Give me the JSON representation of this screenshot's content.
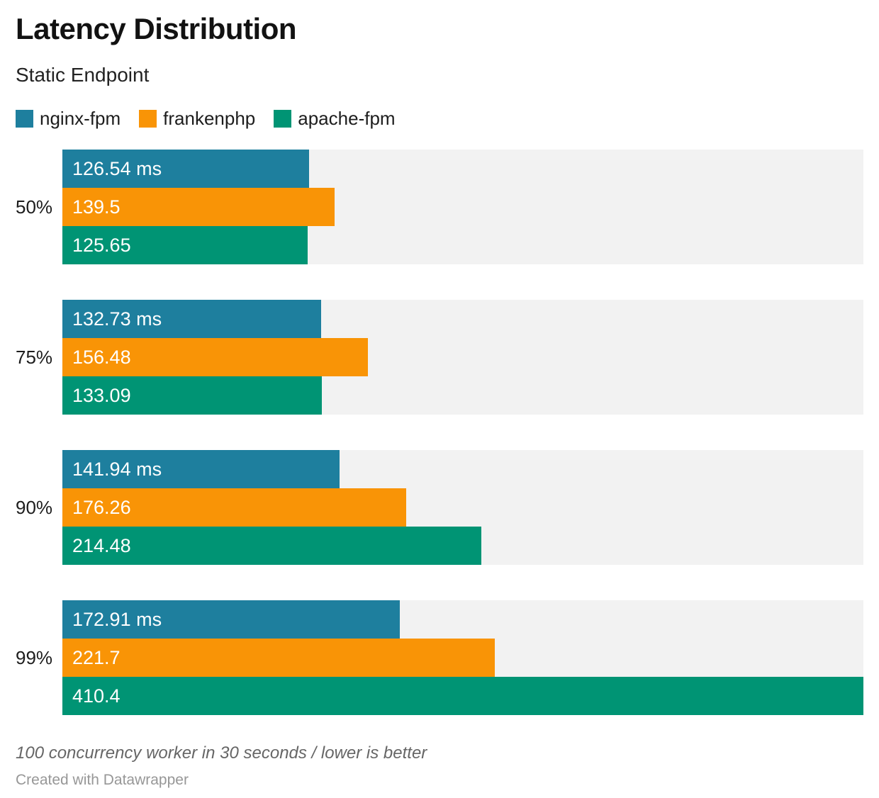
{
  "header": {
    "title": "Latency Distribution",
    "subtitle": "Static Endpoint"
  },
  "legend": [
    {
      "label": "nginx-fpm",
      "color": "#1e7f9e"
    },
    {
      "label": "frankenphp",
      "color": "#f99406"
    },
    {
      "label": "apache-fpm",
      "color": "#009474"
    }
  ],
  "chart_data": {
    "type": "bar",
    "orientation": "horizontal",
    "title": "Latency Distribution",
    "subtitle": "Static Endpoint",
    "categories": [
      "50%",
      "75%",
      "90%",
      "99%"
    ],
    "series": [
      {
        "name": "nginx-fpm",
        "color": "#1e7f9e",
        "values": [
          126.54,
          132.73,
          141.94,
          172.91
        ],
        "labels": [
          "126.54 ms",
          "132.73 ms",
          "141.94 ms",
          "172.91 ms"
        ]
      },
      {
        "name": "frankenphp",
        "color": "#f99406",
        "values": [
          139.5,
          156.48,
          176.26,
          221.7
        ],
        "labels": [
          "139.5",
          "156.48",
          "176.26",
          "221.7"
        ]
      },
      {
        "name": "apache-fpm",
        "color": "#009474",
        "values": [
          125.65,
          133.09,
          214.48,
          410.4
        ],
        "labels": [
          "125.65",
          "133.09",
          "214.48",
          "410.4"
        ]
      }
    ],
    "unit": "ms",
    "xlabel": "",
    "ylabel": "",
    "xlim": [
      0,
      410.4
    ],
    "grid": false,
    "legend_position": "top",
    "track_color": "#f2f2f2"
  },
  "footer": {
    "note": "100 concurrency worker in 30 seconds / lower is better",
    "credit": "Created with Datawrapper"
  }
}
